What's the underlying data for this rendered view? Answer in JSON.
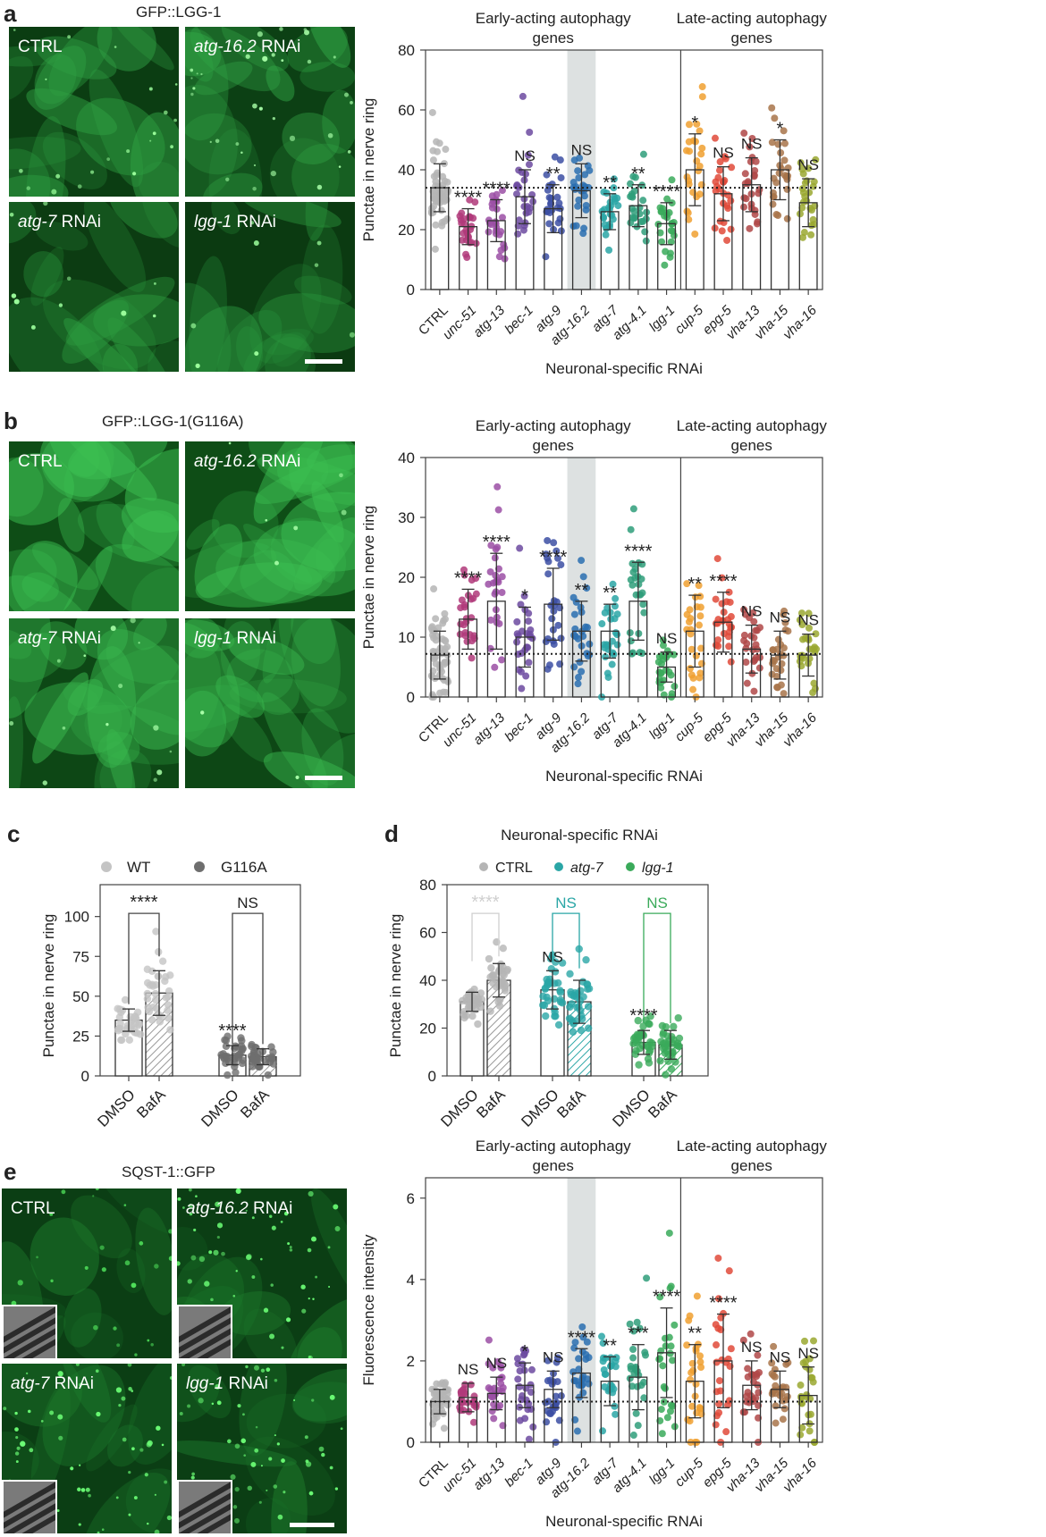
{
  "panels": {
    "a": {
      "letter": "a",
      "microscopy_title": "GFP::LGG-1",
      "images": [
        {
          "label_pre": "CTRL",
          "label_it": "",
          "label_post": ""
        },
        {
          "label_pre": "",
          "label_it": "atg-16.2",
          "label_post": " RNAi"
        },
        {
          "label_pre": "",
          "label_it": "atg-7",
          "label_post": " RNAi"
        },
        {
          "label_pre": "",
          "label_it": "lgg-1",
          "label_post": " RNAi"
        }
      ]
    },
    "b": {
      "letter": "b",
      "microscopy_title": "GFP::LGG-1(G116A)",
      "images": [
        {
          "label_pre": "CTRL",
          "label_it": "",
          "label_post": ""
        },
        {
          "label_pre": "",
          "label_it": "atg-16.2",
          "label_post": " RNAi"
        },
        {
          "label_pre": "",
          "label_it": "atg-7",
          "label_post": " RNAi"
        },
        {
          "label_pre": "",
          "label_it": "lgg-1",
          "label_post": " RNAi"
        }
      ]
    },
    "c": {
      "letter": "c"
    },
    "d": {
      "letter": "d"
    },
    "e": {
      "letter": "e",
      "microscopy_title": "SQST-1::GFP",
      "images": [
        {
          "label_pre": "CTRL",
          "label_it": "",
          "label_post": ""
        },
        {
          "label_pre": "",
          "label_it": "atg-16.2",
          "label_post": " RNAi"
        },
        {
          "label_pre": "",
          "label_it": "atg-7",
          "label_post": " RNAi"
        },
        {
          "label_pre": "",
          "label_it": "lgg-1",
          "label_post": " RNAi"
        }
      ]
    }
  },
  "colors": {
    "CTRL": "#b5b5b5",
    "unc-51": "#b03a7a",
    "atg-13": "#9b4fa5",
    "bec-1": "#6c4aa0",
    "atg-9": "#3c4fa3",
    "atg-16.2": "#2a6fb0",
    "atg-7": "#2aa6a6",
    "atg-4.1": "#2f9e7a",
    "lgg-1": "#3aaa5a",
    "cup-5": "#f0a030",
    "epg-5": "#e04a3a",
    "vha-13": "#b04848",
    "vha-15": "#a8744a",
    "vha-16": "#9aa830",
    "WT": "#c4c4c4",
    "G116A": "#6e6e6e",
    "highlight": "#dde1e1"
  },
  "chart_data": [
    {
      "id": "a",
      "type": "bar",
      "ylabel": "Punctae in nerve ring",
      "xlabel": "Neuronal-specific RNAi",
      "group_labels": [
        "Early-acting autophagy genes",
        "Late-acting autophagy genes"
      ],
      "ylim": [
        0,
        80
      ],
      "yticks": [
        0,
        20,
        40,
        60,
        80
      ],
      "reference_line": 34,
      "highlight": "atg-16.2",
      "categories": [
        "CTRL",
        "unc-51",
        "atg-13",
        "bec-1",
        "atg-9",
        "atg-16.2",
        "atg-7",
        "atg-4.1",
        "lgg-1",
        "cup-5",
        "epg-5",
        "vha-13",
        "vha-15",
        "vha-16"
      ],
      "values": [
        34,
        21,
        23,
        31,
        27,
        33,
        26,
        28,
        22,
        40,
        32,
        35,
        40,
        29
      ],
      "errors": [
        8,
        6,
        7,
        9,
        8,
        9,
        6,
        7,
        7,
        12,
        9,
        9,
        10,
        8
      ],
      "significance": [
        "",
        "****",
        "****",
        "NS",
        "**",
        "NS",
        "**",
        "**",
        "****",
        "*",
        "NS",
        "NS",
        "*",
        "NS"
      ]
    },
    {
      "id": "b",
      "type": "bar",
      "ylabel": "Punctae in nerve ring",
      "xlabel": "Neuronal-specific RNAi",
      "group_labels": [
        "Early-acting autophagy genes",
        "Late-acting autophagy genes"
      ],
      "ylim": [
        0,
        40
      ],
      "yticks": [
        0,
        10,
        20,
        30,
        40
      ],
      "reference_line": 7.2,
      "highlight": "atg-16.2",
      "categories": [
        "CTRL",
        "unc-51",
        "atg-13",
        "bec-1",
        "atg-9",
        "atg-16.2",
        "atg-7",
        "atg-4.1",
        "lgg-1",
        "cup-5",
        "epg-5",
        "vha-13",
        "vha-15",
        "vha-16"
      ],
      "values": [
        7,
        13,
        16,
        10,
        15.5,
        11,
        11,
        16,
        5,
        11,
        12.5,
        8,
        7,
        7
      ],
      "errors": [
        4,
        5,
        8,
        5,
        6,
        5,
        4.5,
        6.5,
        2.5,
        6,
        5,
        4,
        4,
        3.5
      ],
      "significance": [
        "",
        "****",
        "****",
        "*",
        "****",
        "**",
        "**",
        "****",
        "NS",
        "**",
        "****",
        "NS",
        "NS",
        "NS"
      ]
    },
    {
      "id": "c",
      "type": "bar",
      "ylabel": "Punctae in nerve ring",
      "ylim": [
        0,
        120
      ],
      "yticks": [
        0,
        25,
        50,
        75,
        100
      ],
      "legend": [
        "WT",
        "G116A"
      ],
      "categories": [
        "DMSO",
        "BafA",
        "DMSO",
        "BafA"
      ],
      "series_of_bar": [
        "WT",
        "WT",
        "G116A",
        "G116A"
      ],
      "hatched": [
        false,
        true,
        false,
        true
      ],
      "values": [
        35,
        52,
        13,
        12
      ],
      "errors": [
        7,
        14,
        6,
        5
      ],
      "comparisons": [
        {
          "from": 0,
          "to": 1,
          "label": "****"
        },
        {
          "from": 2,
          "to": 3,
          "label": "NS"
        }
      ],
      "bar_labels": [
        {
          "bar": 2,
          "label": "****"
        }
      ]
    },
    {
      "id": "d",
      "type": "bar",
      "title": "Neuronal-specific RNAi",
      "ylabel": "Punctae in nerve ring",
      "ylim": [
        0,
        80
      ],
      "yticks": [
        0,
        20,
        40,
        60,
        80
      ],
      "legend": [
        "CTRL",
        "atg-7",
        "lgg-1"
      ],
      "categories": [
        "DMSO",
        "BafA",
        "DMSO",
        "BafA",
        "DMSO",
        "BafA"
      ],
      "series_of_bar": [
        "CTRL",
        "CTRL",
        "atg-7",
        "atg-7",
        "lgg-1",
        "lgg-1"
      ],
      "hatched": [
        false,
        true,
        false,
        true,
        false,
        true
      ],
      "values": [
        31,
        40,
        36,
        31,
        14,
        13
      ],
      "errors": [
        4,
        7,
        8,
        9,
        5,
        6
      ],
      "comparisons": [
        {
          "from": 0,
          "to": 1,
          "label": "****"
        },
        {
          "from": 2,
          "to": 3,
          "label": "NS"
        },
        {
          "from": 4,
          "to": 5,
          "label": "NS"
        }
      ],
      "bar_labels": [
        {
          "bar": 2,
          "label": "NS"
        },
        {
          "bar": 4,
          "label": "****"
        }
      ]
    },
    {
      "id": "e",
      "type": "bar",
      "ylabel": "Fluorescence intensity",
      "xlabel": "Neuronal-specific RNAi",
      "group_labels": [
        "Early-acting autophagy genes",
        "Late-acting autophagy genes"
      ],
      "ylim": [
        0,
        6.5
      ],
      "yticks": [
        0,
        2,
        4,
        6
      ],
      "reference_line": 1,
      "highlight": "atg-16.2",
      "categories": [
        "CTRL",
        "unc-51",
        "atg-13",
        "bec-1",
        "atg-9",
        "atg-16.2",
        "atg-7",
        "atg-4.1",
        "lgg-1",
        "cup-5",
        "epg-5",
        "vha-13",
        "vha-15",
        "vha-16"
      ],
      "values": [
        1.0,
        1.1,
        1.2,
        1.4,
        1.3,
        1.7,
        1.5,
        1.6,
        2.2,
        1.5,
        2.0,
        1.4,
        1.3,
        1.15
      ],
      "errors": [
        0.3,
        0.35,
        0.4,
        0.55,
        0.45,
        0.6,
        0.6,
        0.8,
        1.1,
        0.9,
        1.15,
        0.6,
        0.45,
        0.7
      ],
      "significance": [
        "",
        "NS",
        "NS",
        "*",
        "NS",
        "****",
        "**",
        "***",
        "****",
        "**",
        "****",
        "NS",
        "NS",
        "NS"
      ]
    }
  ]
}
